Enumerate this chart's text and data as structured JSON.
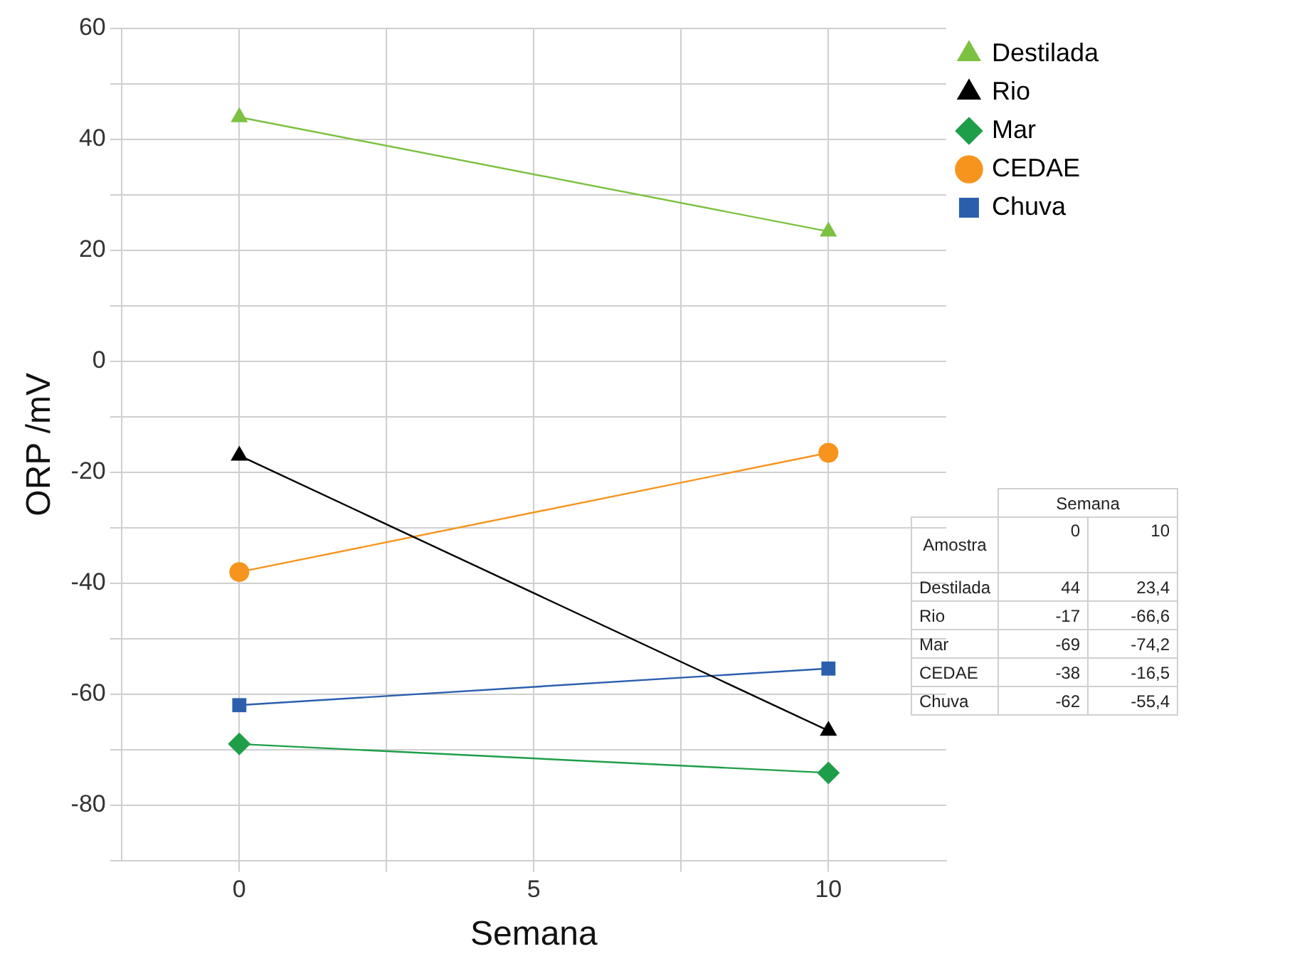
{
  "chart_data": [
    {
      "type": "line",
      "xlabel": "Semana",
      "ylabel": "ORP /mV",
      "x": [
        0,
        10
      ],
      "xlim": [
        -2,
        12
      ],
      "xticks": [
        0,
        {
          "value": 2.5,
          "label": null
        },
        5,
        {
          "value": 7.5,
          "label": null
        },
        10
      ],
      "ylim": [
        -90,
        60
      ],
      "yticks": [
        {
          "value": -90,
          "label": null
        },
        -80,
        {
          "value": -70,
          "label": null
        },
        -60,
        {
          "value": -50,
          "label": null
        },
        -40,
        {
          "value": -30,
          "label": null
        },
        -20,
        {
          "value": -10,
          "label": null
        },
        0,
        {
          "value": 10,
          "label": null
        },
        20,
        {
          "value": 30,
          "label": null
        },
        40,
        {
          "value": 50,
          "label": null
        },
        60
      ],
      "grid": true,
      "legend": "top right",
      "line_style": "solid",
      "series": [
        {
          "name": "Destilada",
          "color": "#7cc142",
          "marker": "triangle",
          "values": [
            44,
            23.4
          ]
        },
        {
          "name": "Rio",
          "color": "#000000",
          "marker": "triangle",
          "values": [
            -17,
            -66.6
          ]
        },
        {
          "name": "Mar",
          "color": "#1f9e49",
          "marker": "diamond",
          "values": [
            -69,
            -74.2
          ]
        },
        {
          "name": "CEDAE",
          "color": "#f7941d",
          "marker": "circle",
          "values": [
            -38,
            -16.5
          ]
        },
        {
          "name": "Chuva",
          "color": "#2b5fad",
          "marker": "square",
          "values": [
            -62,
            -55.4
          ]
        }
      ]
    },
    {
      "type": "other",
      "title": "Semana",
      "annotations": [
        "Amostra"
      ],
      "categories": [
        "Destilada",
        "Rio",
        "Mar",
        "CEDAE",
        "Chuva"
      ],
      "series": [
        {
          "name": "0",
          "values": [
            44,
            -17,
            -69,
            -38,
            -62
          ],
          "value_labels": [
            "44",
            "-17",
            "-69",
            "-38",
            "-62"
          ]
        },
        {
          "name": "10",
          "values": [
            23.4,
            -66.6,
            -74.2,
            -16.5,
            -55.4
          ],
          "value_labels": [
            "23,4",
            "-66,6",
            "-74,2",
            "-16,5",
            "-55,4"
          ]
        }
      ]
    }
  ]
}
